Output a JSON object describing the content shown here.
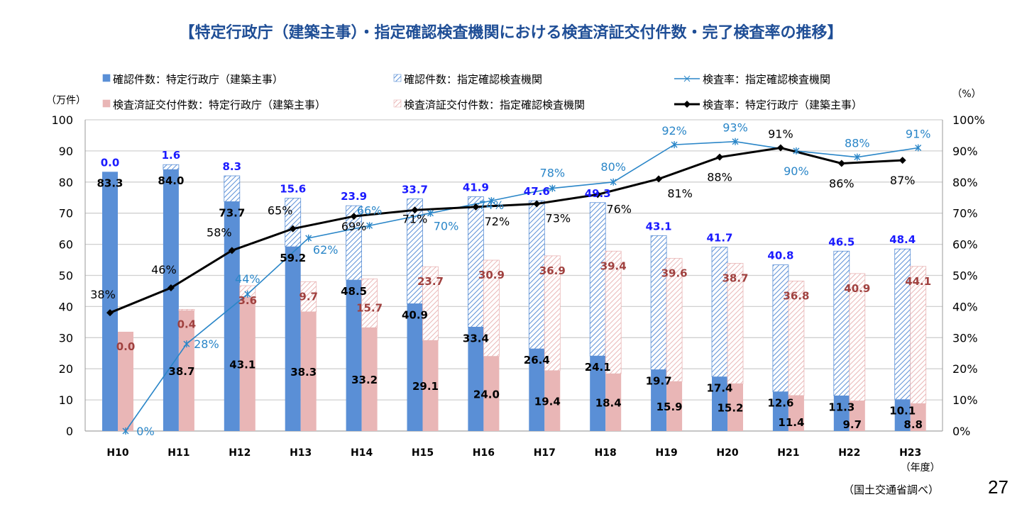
{
  "title": "【特定行政庁（建築主事）・指定確認検査機関における検査済証交付件数・完了検査率の推移】",
  "left_unit": "（万件）",
  "right_unit": "（%）",
  "year_unit": "（年度）",
  "source": "（国土交通省調べ）",
  "page_number": "27",
  "colors": {
    "blue": "#5a8fd6",
    "pink": "#e9b6b6",
    "blue_line": "#2a86c8",
    "black_line": "#000000",
    "blue_label": "#1a1aff",
    "red_label": "#a0413f"
  },
  "chart_data": {
    "type": "bar",
    "categories": [
      "H10",
      "H11",
      "H12",
      "H13",
      "H14",
      "H15",
      "H16",
      "H17",
      "H18",
      "H19",
      "H20",
      "H21",
      "H22",
      "H23"
    ],
    "ylabel": "万件",
    "ylim": [
      0,
      100
    ],
    "yticks": [
      "0",
      "10",
      "20",
      "30",
      "40",
      "50",
      "60",
      "70",
      "80",
      "90",
      "100"
    ],
    "y2label": "%",
    "y2lim": [
      0,
      100
    ],
    "y2ticks": [
      "0%",
      "10%",
      "20%",
      "30%",
      "40%",
      "50%",
      "60%",
      "70%",
      "80%",
      "90%",
      "100%"
    ],
    "grid": true,
    "legend_position": "top",
    "series": [
      {
        "name": "確認件数：特定行政庁（建築主事）",
        "kind": "bar-solid",
        "stack": "confirm",
        "values": [
          83.3,
          84.0,
          73.7,
          59.2,
          48.5,
          40.9,
          33.4,
          26.4,
          24.1,
          19.7,
          17.4,
          12.6,
          11.3,
          10.1
        ]
      },
      {
        "name": "確認件数：指定確認検査機関",
        "kind": "bar-hatched",
        "stack": "confirm",
        "values": [
          0.0,
          1.6,
          8.3,
          15.6,
          23.9,
          33.7,
          41.9,
          47.6,
          49.3,
          43.1,
          41.7,
          40.8,
          46.5,
          48.4
        ]
      },
      {
        "name": "検査済証交付件数：特定行政庁（建築主事）",
        "kind": "bar-solid",
        "stack": "inspect",
        "values": [
          31.9,
          38.7,
          43.1,
          38.3,
          33.2,
          29.1,
          24.0,
          19.4,
          18.4,
          15.9,
          15.2,
          11.4,
          9.7,
          8.8
        ],
        "labels": [
          null,
          "38.7",
          "43.1",
          "38.3",
          "33.2",
          "29.1",
          "24.0",
          "19.4",
          "18.4",
          "15.9",
          "15.2",
          "11.4",
          "9.7",
          "8.8"
        ]
      },
      {
        "name": "検査済証交付件数：指定確認検査機関",
        "kind": "bar-hatched",
        "stack": "inspect",
        "values": [
          0.0,
          0.4,
          3.6,
          9.7,
          15.7,
          23.7,
          30.9,
          36.9,
          39.4,
          39.6,
          38.7,
          36.8,
          40.9,
          44.1
        ]
      },
      {
        "name": "検査率：指定確認検査機関",
        "kind": "line",
        "axis": "right",
        "values": [
          0,
          28,
          44,
          62,
          66,
          70,
          74,
          78,
          80,
          92,
          93,
          90,
          88,
          91
        ]
      },
      {
        "name": "検査率：特定行政庁（建築主事）",
        "kind": "line",
        "axis": "right",
        "values": [
          38,
          46,
          58,
          65,
          69,
          71,
          72,
          73,
          76,
          81,
          88,
          91,
          86,
          87
        ]
      }
    ]
  }
}
